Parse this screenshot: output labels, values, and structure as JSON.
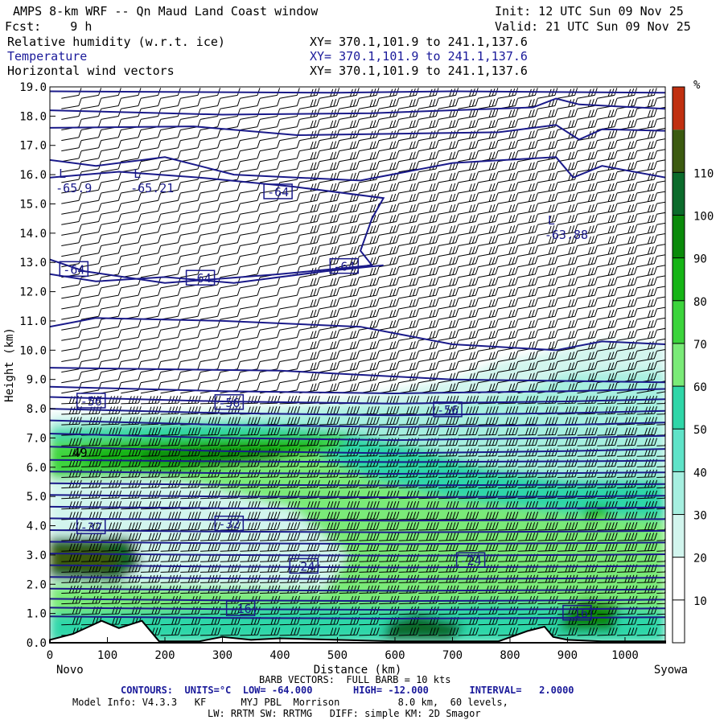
{
  "header": {
    "title": "AMPS 8-km WRF -- Qn Maud Land Coast window",
    "init": "Init: 12 UTC Sun 09 Nov 25",
    "fcst": "Fcst:    9 h",
    "valid": "Valid: 21 UTC Sun 09 Nov 25",
    "fields": [
      {
        "name": "Relative humidity (w.r.t. ice)",
        "xy": "XY= 370.1,101.9 to 241.1,137.6",
        "color": "#000000"
      },
      {
        "name": "Temperature",
        "xy": "XY= 370.1,101.9 to 241.1,137.6",
        "color": "#1a1a9a"
      },
      {
        "name": "Horizontal wind vectors",
        "xy": "XY= 370.1,101.9 to 241.1,137.6",
        "color": "#000000"
      }
    ]
  },
  "chart_data": {
    "type": "heatmap",
    "xlabel": "Distance (km)",
    "ylabel": "Height (km)",
    "xlim": [
      0,
      1070
    ],
    "ylim": [
      0,
      19
    ],
    "x_ticks": [
      "0",
      "100",
      "200",
      "300",
      "400",
      "500",
      "600",
      "700",
      "800",
      "900",
      "1000"
    ],
    "y_ticks": [
      "0.0",
      "1.0",
      "2.0",
      "3.0",
      "4.0",
      "5.0",
      "6.0",
      "7.0",
      "8.0",
      "9.0",
      "10.0",
      "11.0",
      "12.0",
      "13.0",
      "14.0",
      "15.0",
      "16.0",
      "17.0",
      "18.0",
      "19.0"
    ],
    "left_end_label": "Novo",
    "right_end_label": "Syowa",
    "colorbar": {
      "unit": "%",
      "ticks": [
        "10",
        "20",
        "30",
        "40",
        "50",
        "60",
        "70",
        "80",
        "90",
        "100",
        "110"
      ],
      "bands": [
        "#ffffff",
        "#ffffff",
        "#ffffff",
        "#d2f5ee",
        "#a6efe0",
        "#5fe3c8",
        "#2fd6a8",
        "#7aea78",
        "#3cd43c",
        "#16b416",
        "#0a8a0a",
        "#0b6b2b",
        "#3b5a10",
        "#c03010"
      ]
    },
    "temperature_contour_labels": [
      "-64",
      "-64",
      "-64",
      "-64",
      "-56",
      "-56",
      "-56",
      "-32",
      "-32",
      "-24",
      "-24",
      "-16",
      "-16"
    ],
    "extrema_labels": [
      {
        "mark": "L",
        "value": "-65.9"
      },
      {
        "mark": "L",
        "value": "-65.21"
      },
      {
        "mark": "L",
        "value": "-63.88"
      }
    ],
    "rh_contour_labels": [
      "49"
    ],
    "contours": {
      "units": "°C",
      "low": -64.0,
      "high": -12.0,
      "interval": 2.0
    }
  },
  "footer": {
    "barb": "BARB VECTORS:  FULL BARB = 10 kts",
    "contours": "CONTOURS:  UNITS=°C  LOW= -64.000       HIGH= -12.000       INTERVAL=   2.0000",
    "model1": "Model Info: V4.3.3   KF      MYJ PBL  Morrison          8.0 km,  60 levels,",
    "model2": "LW: RRTM SW: RRTMG   DIFF: simple KM: 2D Smagor"
  }
}
